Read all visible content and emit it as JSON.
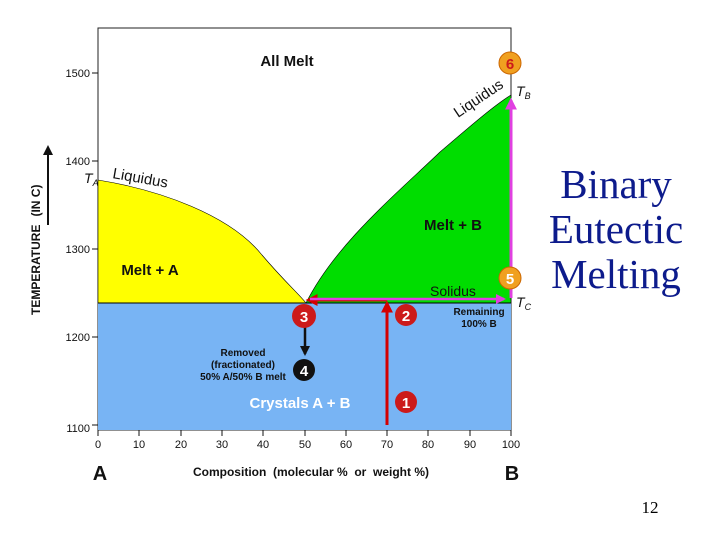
{
  "slide": {
    "title_lines": [
      "Binary",
      "Eutectic",
      "Melting"
    ],
    "page_number": "12"
  },
  "diagram": {
    "y_axis": {
      "label_main": "Temperature",
      "label_unit": "(in C)",
      "ticks": [
        "1500",
        "1400",
        "1300",
        "1200",
        "1100"
      ]
    },
    "x_axis": {
      "label": "Composition  (molecular %  or  weight %)",
      "ticks": [
        "0",
        "10",
        "20",
        "30",
        "40",
        "50",
        "60",
        "70",
        "80",
        "90",
        "100"
      ],
      "left_end": "A",
      "right_end": "B"
    },
    "regions": {
      "all_melt": "All Melt",
      "melt_b": "Melt + B",
      "melt_a": "Melt + A",
      "crystals": "Crystals A + B"
    },
    "curve_labels": {
      "liquidus_left": "Liquidus",
      "liquidus_right": "Liquidus",
      "solidus": "Solidus"
    },
    "temperature_markers": {
      "ta": "TA",
      "tb": "TB",
      "tc": "TC"
    },
    "notes": {
      "removed_line1": "Removed",
      "removed_line2": "(fractionated)",
      "removed_line3": "50% A/50% B melt",
      "remaining_line1": "Remaining",
      "remaining_line2": "100% B"
    },
    "steps": [
      "1",
      "2",
      "3",
      "4",
      "5",
      "6"
    ],
    "colors": {
      "melt_a": "#ffff00",
      "melt_b": "#00dd00",
      "crystals": "#78b4f4",
      "path_red": "#d40000",
      "path_magenta": "#e040e0",
      "marker_red": "#cc1a1a",
      "marker_orange": "#f0a020",
      "title_blue": "#0d1b8c"
    }
  }
}
